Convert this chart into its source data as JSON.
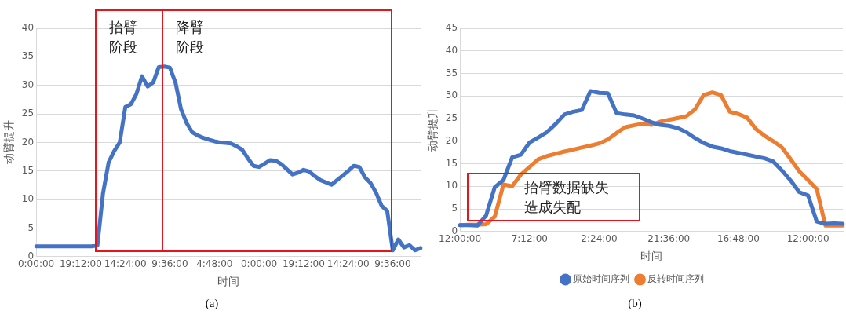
{
  "chart_data": [
    {
      "type": "line",
      "xlabel": "时间",
      "ylabel": "动臂提升",
      "marker": "none",
      "grid": "y",
      "legend": false,
      "categories": [
        "0:00:00",
        null,
        null,
        null,
        null,
        null,
        null,
        null,
        "19:12:00",
        null,
        null,
        null,
        null,
        null,
        null,
        null,
        "14:24:00",
        null,
        null,
        null,
        null,
        null,
        null,
        null,
        "9:36:00",
        null,
        null,
        null,
        null,
        null,
        null,
        null,
        "4:48:00",
        null,
        null,
        null,
        null,
        null,
        null,
        null,
        "0:00:00",
        null,
        null,
        null,
        null,
        null,
        null,
        null,
        "19:12:00",
        null,
        null,
        null,
        null,
        null,
        null,
        null,
        "14:24:00",
        null,
        null,
        null,
        null,
        null,
        null,
        null,
        "9:36:00",
        null,
        null,
        null,
        null,
        null
      ],
      "ylim": [
        0,
        40
      ],
      "yticks": [
        0,
        5,
        10,
        15,
        20,
        25,
        30,
        35,
        40
      ],
      "series": [
        {
          "color": "#4472c4",
          "values": [
            1.8,
            1.8,
            1.8,
            1.8,
            1.8,
            1.8,
            1.8,
            1.8,
            1.8,
            1.8,
            1.8,
            2,
            11.1,
            16.5,
            18.5,
            20,
            26.2,
            26.7,
            28.5,
            31.6,
            29.8,
            30.5,
            33.2,
            33.3,
            33.1,
            30.5,
            25.8,
            23.4,
            21.8,
            21.2,
            20.8,
            20.5,
            20.2,
            20,
            19.9,
            19.8,
            19.3,
            18.7,
            17.2,
            15.9,
            15.7,
            16.3,
            16.9,
            16.8,
            16.2,
            15.3,
            14.4,
            14.7,
            15.2,
            14.9,
            14.1,
            13.4,
            13,
            12.6,
            13.4,
            14.2,
            15,
            15.9,
            15.7,
            13.9,
            12.9,
            11.2,
            8.9,
            8,
            1.1,
            3,
            1.6,
            2,
            1.1,
            1.5
          ]
        }
      ],
      "annotations": [
        "抬臂阶段",
        "降臂阶段",
        "(a)"
      ]
    },
    {
      "type": "line",
      "xlabel": "时间",
      "ylabel": "动臂提升",
      "marker": "none",
      "grid": "y",
      "legend": "bottom",
      "categories": [
        "12:00:00",
        null,
        null,
        null,
        null,
        null,
        null,
        null,
        "7:12:00",
        null,
        null,
        null,
        null,
        null,
        null,
        null,
        "2:24:00",
        null,
        null,
        null,
        null,
        null,
        null,
        null,
        "21:36:00",
        null,
        null,
        null,
        null,
        null,
        null,
        null,
        "16:48:00",
        null,
        null,
        null,
        null,
        null,
        null,
        null,
        "12:00:00",
        null,
        null,
        null,
        null
      ],
      "ylim": [
        0,
        45
      ],
      "yticks": [
        0,
        5,
        10,
        15,
        20,
        25,
        30,
        35,
        40,
        45
      ],
      "series": [
        {
          "name": "原始时间序列",
          "color": "#4472c4",
          "values": [
            1.4,
            1.4,
            1.3,
            3.5,
            9.8,
            11.4,
            16.4,
            17,
            19.7,
            20.8,
            22,
            23.8,
            25.9,
            26.5,
            26.9,
            31.1,
            30.7,
            30.6,
            26.2,
            25.9,
            25.7,
            25,
            24.2,
            23.6,
            23.4,
            22.9,
            22,
            20.7,
            19.6,
            18.8,
            18.4,
            17.8,
            17.4,
            17,
            16.6,
            16.2,
            15.5,
            13.5,
            11.3,
            8.7,
            8,
            2.2,
            1.7,
            1.8,
            1.7
          ]
        },
        {
          "name": "反转时间序列",
          "color": "#ed7d31",
          "values": [
            1.4,
            1.5,
            1.5,
            1.6,
            3.3,
            10.4,
            10,
            12.6,
            14.3,
            16,
            16.7,
            17.2,
            17.7,
            18.1,
            18.6,
            19,
            19.5,
            20.4,
            21.8,
            23.1,
            23.5,
            23.9,
            23.6,
            24.3,
            24.7,
            25.1,
            25.5,
            27,
            30.2,
            30.8,
            30.2,
            26.5,
            26,
            25.2,
            22.7,
            21.2,
            20,
            18.6,
            16,
            13.3,
            11.4,
            9.4,
            1.3,
            1.3,
            1.3
          ]
        }
      ],
      "annotations": [
        "抬臂数据缺失造成失配",
        "(b)"
      ]
    }
  ]
}
